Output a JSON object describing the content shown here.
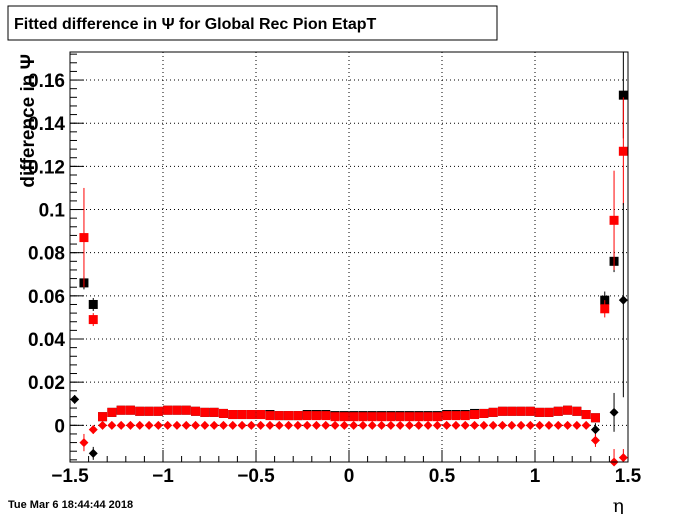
{
  "title": "Fitted difference in  Ψ  for Global Rec Pion EtapT",
  "timestamp": "Tue Mar  6 18:44:44 2018",
  "chart_data": {
    "type": "scatter",
    "xlabel": "η",
    "ylabel": "difference in Ψ",
    "xlim": [
      -1.5,
      1.5
    ],
    "ylim": [
      -0.017,
      0.173
    ],
    "grid": true,
    "xticks": [
      {
        "value": -1.5,
        "label": "−1.5"
      },
      {
        "value": -1.0,
        "label": "−1"
      },
      {
        "value": -0.5,
        "label": "−0.5"
      },
      {
        "value": 0.0,
        "label": "0"
      },
      {
        "value": 0.5,
        "label": "0.5"
      },
      {
        "value": 1.0,
        "label": "1"
      },
      {
        "value": 1.5,
        "label": "1.5"
      }
    ],
    "yticks": [
      {
        "value": 0.0,
        "label": "0"
      },
      {
        "value": 0.02,
        "label": "0.02"
      },
      {
        "value": 0.04,
        "label": "0.04"
      },
      {
        "value": 0.06,
        "label": "0.06"
      },
      {
        "value": 0.08,
        "label": "0.08"
      },
      {
        "value": 0.1,
        "label": "0.1"
      },
      {
        "value": 0.12,
        "label": "0.12"
      },
      {
        "value": 0.14,
        "label": "0.14"
      },
      {
        "value": 0.16,
        "label": "0.16"
      }
    ],
    "series": [
      {
        "color": "#000000",
        "marker": "square",
        "points": [
          {
            "x": -1.425,
            "y": 0.066,
            "err": 0.003
          },
          {
            "x": -1.375,
            "y": 0.056,
            "err": 0.003
          },
          {
            "x": -1.325,
            "y": 0.004,
            "err": 0.001
          },
          {
            "x": -1.275,
            "y": 0.006,
            "err": 0.001
          },
          {
            "x": -1.225,
            "y": 0.007,
            "err": 0.001
          },
          {
            "x": -1.175,
            "y": 0.007,
            "err": 0.001
          },
          {
            "x": -1.125,
            "y": 0.0065,
            "err": 0.001
          },
          {
            "x": -1.075,
            "y": 0.0065,
            "err": 0.001
          },
          {
            "x": -1.025,
            "y": 0.0065,
            "err": 0.001
          },
          {
            "x": -0.975,
            "y": 0.007,
            "err": 0.001
          },
          {
            "x": -0.925,
            "y": 0.007,
            "err": 0.001
          },
          {
            "x": -0.875,
            "y": 0.007,
            "err": 0.001
          },
          {
            "x": -0.825,
            "y": 0.0065,
            "err": 0.001
          },
          {
            "x": -0.775,
            "y": 0.006,
            "err": 0.001
          },
          {
            "x": -0.725,
            "y": 0.006,
            "err": 0.001
          },
          {
            "x": -0.675,
            "y": 0.0055,
            "err": 0.001
          },
          {
            "x": -0.625,
            "y": 0.005,
            "err": 0.001
          },
          {
            "x": -0.575,
            "y": 0.005,
            "err": 0.001
          },
          {
            "x": -0.525,
            "y": 0.005,
            "err": 0.001
          },
          {
            "x": -0.475,
            "y": 0.005,
            "err": 0.001
          },
          {
            "x": -0.425,
            "y": 0.005,
            "err": 0.001
          },
          {
            "x": -0.375,
            "y": 0.0045,
            "err": 0.001
          },
          {
            "x": -0.325,
            "y": 0.0045,
            "err": 0.001
          },
          {
            "x": -0.275,
            "y": 0.0045,
            "err": 0.001
          },
          {
            "x": -0.225,
            "y": 0.005,
            "err": 0.001
          },
          {
            "x": -0.175,
            "y": 0.005,
            "err": 0.001
          },
          {
            "x": -0.125,
            "y": 0.005,
            "err": 0.001
          },
          {
            "x": -0.075,
            "y": 0.0045,
            "err": 0.001
          },
          {
            "x": -0.025,
            "y": 0.0045,
            "err": 0.001
          },
          {
            "x": 0.025,
            "y": 0.0045,
            "err": 0.001
          },
          {
            "x": 0.075,
            "y": 0.0045,
            "err": 0.001
          },
          {
            "x": 0.125,
            "y": 0.0045,
            "err": 0.001
          },
          {
            "x": 0.175,
            "y": 0.0045,
            "err": 0.001
          },
          {
            "x": 0.225,
            "y": 0.0045,
            "err": 0.001
          },
          {
            "x": 0.275,
            "y": 0.0045,
            "err": 0.001
          },
          {
            "x": 0.325,
            "y": 0.0045,
            "err": 0.001
          },
          {
            "x": 0.375,
            "y": 0.0045,
            "err": 0.001
          },
          {
            "x": 0.425,
            "y": 0.0045,
            "err": 0.001
          },
          {
            "x": 0.475,
            "y": 0.0045,
            "err": 0.001
          },
          {
            "x": 0.525,
            "y": 0.005,
            "err": 0.001
          },
          {
            "x": 0.575,
            "y": 0.005,
            "err": 0.001
          },
          {
            "x": 0.625,
            "y": 0.005,
            "err": 0.001
          },
          {
            "x": 0.675,
            "y": 0.0055,
            "err": 0.001
          },
          {
            "x": 0.725,
            "y": 0.0055,
            "err": 0.001
          },
          {
            "x": 0.775,
            "y": 0.006,
            "err": 0.001
          },
          {
            "x": 0.825,
            "y": 0.0065,
            "err": 0.001
          },
          {
            "x": 0.875,
            "y": 0.0065,
            "err": 0.001
          },
          {
            "x": 0.925,
            "y": 0.0065,
            "err": 0.001
          },
          {
            "x": 0.975,
            "y": 0.0065,
            "err": 0.001
          },
          {
            "x": 1.025,
            "y": 0.006,
            "err": 0.001
          },
          {
            "x": 1.075,
            "y": 0.006,
            "err": 0.001
          },
          {
            "x": 1.125,
            "y": 0.0065,
            "err": 0.001
          },
          {
            "x": 1.175,
            "y": 0.007,
            "err": 0.001
          },
          {
            "x": 1.225,
            "y": 0.0065,
            "err": 0.001
          },
          {
            "x": 1.275,
            "y": 0.005,
            "err": 0.001
          },
          {
            "x": 1.325,
            "y": 0.0035,
            "err": 0.001
          },
          {
            "x": 1.375,
            "y": 0.058,
            "err": 0.004
          },
          {
            "x": 1.425,
            "y": 0.076,
            "err": 0.005
          },
          {
            "x": 1.475,
            "y": 0.153,
            "err": 0.02
          }
        ]
      },
      {
        "color": "#ff0000",
        "marker": "square",
        "points": [
          {
            "x": -1.425,
            "y": 0.087,
            "err": 0.023
          },
          {
            "x": -1.375,
            "y": 0.049,
            "err": 0.003
          },
          {
            "x": -1.325,
            "y": 0.004,
            "err": 0.001
          },
          {
            "x": -1.275,
            "y": 0.006,
            "err": 0.001
          },
          {
            "x": -1.225,
            "y": 0.007,
            "err": 0.001
          },
          {
            "x": -1.175,
            "y": 0.007,
            "err": 0.001
          },
          {
            "x": -1.125,
            "y": 0.0065,
            "err": 0.001
          },
          {
            "x": -1.075,
            "y": 0.0065,
            "err": 0.001
          },
          {
            "x": -1.025,
            "y": 0.0065,
            "err": 0.001
          },
          {
            "x": -0.975,
            "y": 0.007,
            "err": 0.001
          },
          {
            "x": -0.925,
            "y": 0.007,
            "err": 0.001
          },
          {
            "x": -0.875,
            "y": 0.007,
            "err": 0.001
          },
          {
            "x": -0.825,
            "y": 0.0065,
            "err": 0.001
          },
          {
            "x": -0.775,
            "y": 0.006,
            "err": 0.001
          },
          {
            "x": -0.725,
            "y": 0.006,
            "err": 0.001
          },
          {
            "x": -0.675,
            "y": 0.0055,
            "err": 0.001
          },
          {
            "x": -0.625,
            "y": 0.005,
            "err": 0.001
          },
          {
            "x": -0.575,
            "y": 0.005,
            "err": 0.001
          },
          {
            "x": -0.525,
            "y": 0.005,
            "err": 0.001
          },
          {
            "x": -0.475,
            "y": 0.005,
            "err": 0.001
          },
          {
            "x": -0.425,
            "y": 0.0045,
            "err": 0.001
          },
          {
            "x": -0.375,
            "y": 0.0045,
            "err": 0.001
          },
          {
            "x": -0.325,
            "y": 0.0045,
            "err": 0.001
          },
          {
            "x": -0.275,
            "y": 0.0045,
            "err": 0.001
          },
          {
            "x": -0.225,
            "y": 0.0045,
            "err": 0.001
          },
          {
            "x": -0.175,
            "y": 0.0045,
            "err": 0.001
          },
          {
            "x": -0.125,
            "y": 0.0045,
            "err": 0.001
          },
          {
            "x": -0.075,
            "y": 0.004,
            "err": 0.001
          },
          {
            "x": -0.025,
            "y": 0.004,
            "err": 0.001
          },
          {
            "x": 0.025,
            "y": 0.004,
            "err": 0.001
          },
          {
            "x": 0.075,
            "y": 0.004,
            "err": 0.001
          },
          {
            "x": 0.125,
            "y": 0.004,
            "err": 0.001
          },
          {
            "x": 0.175,
            "y": 0.004,
            "err": 0.001
          },
          {
            "x": 0.225,
            "y": 0.004,
            "err": 0.001
          },
          {
            "x": 0.275,
            "y": 0.004,
            "err": 0.001
          },
          {
            "x": 0.325,
            "y": 0.004,
            "err": 0.001
          },
          {
            "x": 0.375,
            "y": 0.004,
            "err": 0.001
          },
          {
            "x": 0.425,
            "y": 0.004,
            "err": 0.001
          },
          {
            "x": 0.475,
            "y": 0.004,
            "err": 0.001
          },
          {
            "x": 0.525,
            "y": 0.0045,
            "err": 0.001
          },
          {
            "x": 0.575,
            "y": 0.0045,
            "err": 0.001
          },
          {
            "x": 0.625,
            "y": 0.0045,
            "err": 0.001
          },
          {
            "x": 0.675,
            "y": 0.005,
            "err": 0.001
          },
          {
            "x": 0.725,
            "y": 0.0055,
            "err": 0.001
          },
          {
            "x": 0.775,
            "y": 0.006,
            "err": 0.001
          },
          {
            "x": 0.825,
            "y": 0.0065,
            "err": 0.001
          },
          {
            "x": 0.875,
            "y": 0.0065,
            "err": 0.001
          },
          {
            "x": 0.925,
            "y": 0.0065,
            "err": 0.001
          },
          {
            "x": 0.975,
            "y": 0.0065,
            "err": 0.001
          },
          {
            "x": 1.025,
            "y": 0.006,
            "err": 0.001
          },
          {
            "x": 1.075,
            "y": 0.006,
            "err": 0.001
          },
          {
            "x": 1.125,
            "y": 0.0065,
            "err": 0.001
          },
          {
            "x": 1.175,
            "y": 0.007,
            "err": 0.001
          },
          {
            "x": 1.225,
            "y": 0.0065,
            "err": 0.001
          },
          {
            "x": 1.275,
            "y": 0.005,
            "err": 0.001
          },
          {
            "x": 1.325,
            "y": 0.0035,
            "err": 0.001
          },
          {
            "x": 1.375,
            "y": 0.054,
            "err": 0.004
          },
          {
            "x": 1.425,
            "y": 0.095,
            "err": 0.023
          },
          {
            "x": 1.475,
            "y": 0.127,
            "err": 0.025
          }
        ]
      },
      {
        "color": "#000000",
        "marker": "diamond",
        "points": [
          {
            "x": -1.475,
            "y": 0.012,
            "err": 0.002
          },
          {
            "x": -1.375,
            "y": -0.013,
            "err": 0.003
          },
          {
            "x": 1.325,
            "y": -0.002,
            "err": 0.003
          },
          {
            "x": 1.425,
            "y": 0.006,
            "err": 0.009
          },
          {
            "x": 1.475,
            "y": 0.058,
            "err": 0.045
          }
        ]
      },
      {
        "color": "#ff0000",
        "marker": "diamond",
        "points": [
          {
            "x": -1.425,
            "y": -0.008,
            "err": 0.004
          },
          {
            "x": -1.375,
            "y": -0.002,
            "err": 0.002
          },
          {
            "x": -1.325,
            "y": 0.0,
            "err": 0.0
          },
          {
            "x": -1.275,
            "y": 0.0,
            "err": 0.0
          },
          {
            "x": -1.225,
            "y": 0.0,
            "err": 0.0
          },
          {
            "x": -1.175,
            "y": 0.0,
            "err": 0.0
          },
          {
            "x": -1.125,
            "y": 0.0,
            "err": 0.0
          },
          {
            "x": -1.075,
            "y": 0.0,
            "err": 0.0
          },
          {
            "x": -1.025,
            "y": 0.0,
            "err": 0.0
          },
          {
            "x": -0.975,
            "y": 0.0,
            "err": 0.0
          },
          {
            "x": -0.925,
            "y": 0.0,
            "err": 0.0
          },
          {
            "x": -0.875,
            "y": 0.0,
            "err": 0.0
          },
          {
            "x": -0.825,
            "y": 0.0,
            "err": 0.0
          },
          {
            "x": -0.775,
            "y": 0.0,
            "err": 0.0
          },
          {
            "x": -0.725,
            "y": 0.0,
            "err": 0.0
          },
          {
            "x": -0.675,
            "y": 0.0,
            "err": 0.0
          },
          {
            "x": -0.625,
            "y": 0.0,
            "err": 0.0
          },
          {
            "x": -0.575,
            "y": 0.0,
            "err": 0.0
          },
          {
            "x": -0.525,
            "y": 0.0,
            "err": 0.0
          },
          {
            "x": -0.475,
            "y": 0.0,
            "err": 0.0
          },
          {
            "x": -0.425,
            "y": 0.0,
            "err": 0.0
          },
          {
            "x": -0.375,
            "y": 0.0,
            "err": 0.0
          },
          {
            "x": -0.325,
            "y": 0.0,
            "err": 0.0
          },
          {
            "x": -0.275,
            "y": 0.0,
            "err": 0.0
          },
          {
            "x": -0.225,
            "y": 0.0,
            "err": 0.0
          },
          {
            "x": -0.175,
            "y": 0.0,
            "err": 0.0
          },
          {
            "x": -0.125,
            "y": 0.0,
            "err": 0.0
          },
          {
            "x": -0.075,
            "y": 0.0,
            "err": 0.0
          },
          {
            "x": -0.025,
            "y": 0.0,
            "err": 0.0
          },
          {
            "x": 0.025,
            "y": 0.0,
            "err": 0.0
          },
          {
            "x": 0.075,
            "y": 0.0,
            "err": 0.0
          },
          {
            "x": 0.125,
            "y": 0.0,
            "err": 0.0
          },
          {
            "x": 0.175,
            "y": 0.0,
            "err": 0.0
          },
          {
            "x": 0.225,
            "y": 0.0,
            "err": 0.0
          },
          {
            "x": 0.275,
            "y": 0.0,
            "err": 0.0
          },
          {
            "x": 0.325,
            "y": 0.0,
            "err": 0.0
          },
          {
            "x": 0.375,
            "y": 0.0,
            "err": 0.0
          },
          {
            "x": 0.425,
            "y": 0.0,
            "err": 0.0
          },
          {
            "x": 0.475,
            "y": 0.0,
            "err": 0.0
          },
          {
            "x": 0.525,
            "y": 0.0,
            "err": 0.0
          },
          {
            "x": 0.575,
            "y": 0.0,
            "err": 0.0
          },
          {
            "x": 0.625,
            "y": 0.0,
            "err": 0.0
          },
          {
            "x": 0.675,
            "y": 0.0,
            "err": 0.0
          },
          {
            "x": 0.725,
            "y": 0.0,
            "err": 0.0
          },
          {
            "x": 0.775,
            "y": 0.0,
            "err": 0.0
          },
          {
            "x": 0.825,
            "y": 0.0,
            "err": 0.0
          },
          {
            "x": 0.875,
            "y": 0.0,
            "err": 0.0
          },
          {
            "x": 0.925,
            "y": 0.0,
            "err": 0.0
          },
          {
            "x": 0.975,
            "y": 0.0,
            "err": 0.0
          },
          {
            "x": 1.025,
            "y": 0.0,
            "err": 0.0
          },
          {
            "x": 1.075,
            "y": 0.0,
            "err": 0.0
          },
          {
            "x": 1.125,
            "y": 0.0,
            "err": 0.0
          },
          {
            "x": 1.175,
            "y": 0.0,
            "err": 0.0
          },
          {
            "x": 1.225,
            "y": 0.0,
            "err": 0.0
          },
          {
            "x": 1.275,
            "y": 0.0,
            "err": 0.0
          },
          {
            "x": 1.325,
            "y": -0.007,
            "err": 0.003
          },
          {
            "x": 1.425,
            "y": -0.017,
            "err": 0.006
          },
          {
            "x": 1.475,
            "y": -0.015,
            "err": 0.004
          }
        ]
      }
    ]
  }
}
